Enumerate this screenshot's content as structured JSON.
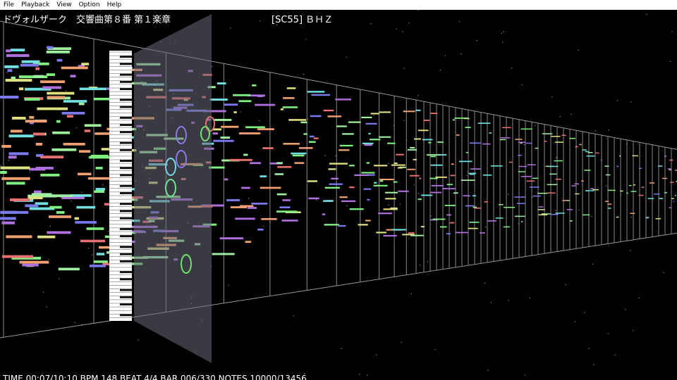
{
  "menu": {
    "items": [
      "File",
      "Playback",
      "View",
      "Option",
      "Help"
    ]
  },
  "header": {
    "title": "ドヴォルザーク　交響曲第８番 第１楽章",
    "port": "[SC55] ＢＨＺ"
  },
  "status": {
    "text": "TIME 00:07/10:10 BPM 148 BEAT 4/4 BAR 006/330 NOTES 10000/13456"
  }
}
